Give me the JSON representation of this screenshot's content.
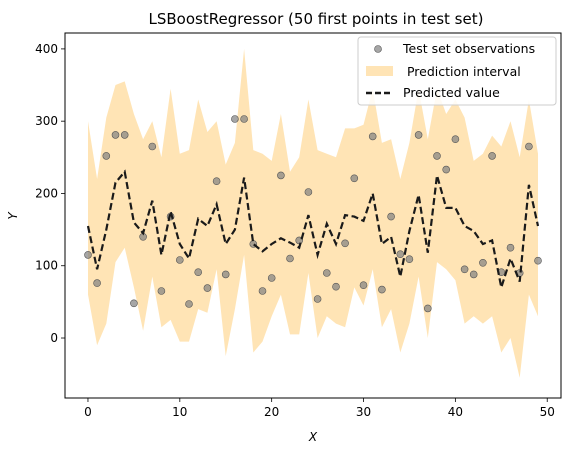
{
  "chart_data": {
    "type": "line",
    "title": "LSBoostRegressor (50 first points in test set)",
    "xlabel": "X",
    "ylabel": "Y",
    "xlim": [
      -2.5,
      51.5
    ],
    "ylim": [
      -83,
      422
    ],
    "xticks": [
      0,
      10,
      20,
      30,
      40,
      50
    ],
    "yticks": [
      0,
      100,
      200,
      300,
      400
    ],
    "legend_position": "top-right",
    "grid": false,
    "colors": {
      "observations": "#808080",
      "interval": "#ffe4b5",
      "predicted": "#1a1a1a"
    },
    "series": [
      {
        "name": "Test set observations",
        "kind": "scatter",
        "x": [
          0,
          1,
          2,
          3,
          4,
          5,
          6,
          7,
          8,
          9,
          10,
          11,
          12,
          13,
          14,
          15,
          16,
          17,
          18,
          19,
          20,
          21,
          22,
          23,
          24,
          25,
          26,
          27,
          28,
          29,
          30,
          31,
          32,
          33,
          34,
          35,
          36,
          37,
          38,
          39,
          40,
          41,
          42,
          43,
          44,
          45,
          46,
          47,
          48,
          49
        ],
        "y": [
          115,
          76,
          252,
          281,
          281,
          48,
          140,
          265,
          65,
          168,
          108,
          47,
          91,
          69,
          217,
          88,
          303,
          303,
          130,
          65,
          83,
          225,
          110,
          135,
          202,
          54,
          90,
          71,
          131,
          221,
          73,
          279,
          67,
          168,
          116,
          109,
          281,
          41,
          252,
          233,
          275,
          95,
          88,
          104,
          252,
          91,
          125,
          90,
          265,
          107
        ]
      },
      {
        "name": " Prediction interval",
        "kind": "band",
        "x": [
          0,
          1,
          2,
          3,
          4,
          5,
          6,
          7,
          8,
          9,
          10,
          11,
          12,
          13,
          14,
          15,
          16,
          17,
          18,
          19,
          20,
          21,
          22,
          23,
          24,
          25,
          26,
          27,
          28,
          29,
          30,
          31,
          32,
          33,
          34,
          35,
          36,
          37,
          38,
          39,
          40,
          41,
          42,
          43,
          44,
          45,
          46,
          47,
          48,
          49
        ],
        "lower": [
          60,
          -10,
          20,
          105,
          125,
          70,
          10,
          85,
          15,
          25,
          -5,
          -5,
          40,
          35,
          95,
          -25,
          40,
          115,
          -20,
          -5,
          30,
          60,
          5,
          5,
          90,
          0,
          30,
          20,
          15,
          70,
          45,
          95,
          15,
          40,
          -20,
          20,
          85,
          0,
          105,
          95,
          80,
          20,
          30,
          20,
          30,
          -20,
          0,
          -55,
          60,
          30
        ],
        "upper": [
          300,
          220,
          305,
          350,
          355,
          310,
          275,
          300,
          250,
          345,
          255,
          260,
          330,
          285,
          300,
          240,
          270,
          400,
          260,
          255,
          245,
          310,
          230,
          250,
          330,
          260,
          255,
          250,
          290,
          290,
          295,
          345,
          270,
          275,
          220,
          270,
          345,
          275,
          345,
          310,
          330,
          305,
          245,
          255,
          280,
          265,
          300,
          250,
          330,
          255
        ]
      },
      {
        "name": "Predicted value",
        "kind": "line",
        "x": [
          0,
          1,
          2,
          3,
          4,
          5,
          6,
          7,
          8,
          9,
          10,
          11,
          12,
          13,
          14,
          15,
          16,
          17,
          18,
          19,
          20,
          21,
          22,
          23,
          24,
          25,
          26,
          27,
          28,
          29,
          30,
          31,
          32,
          33,
          34,
          35,
          36,
          37,
          38,
          39,
          40,
          41,
          42,
          43,
          44,
          45,
          46,
          47,
          48,
          49
        ],
        "y": [
          155,
          95,
          150,
          215,
          230,
          160,
          145,
          190,
          115,
          175,
          130,
          110,
          165,
          155,
          185,
          130,
          150,
          222,
          130,
          120,
          130,
          138,
          132,
          125,
          170,
          115,
          158,
          130,
          170,
          168,
          162,
          200,
          130,
          140,
          85,
          148,
          198,
          118,
          225,
          180,
          180,
          155,
          148,
          130,
          135,
          70,
          110,
          78,
          212,
          155
        ]
      }
    ]
  }
}
